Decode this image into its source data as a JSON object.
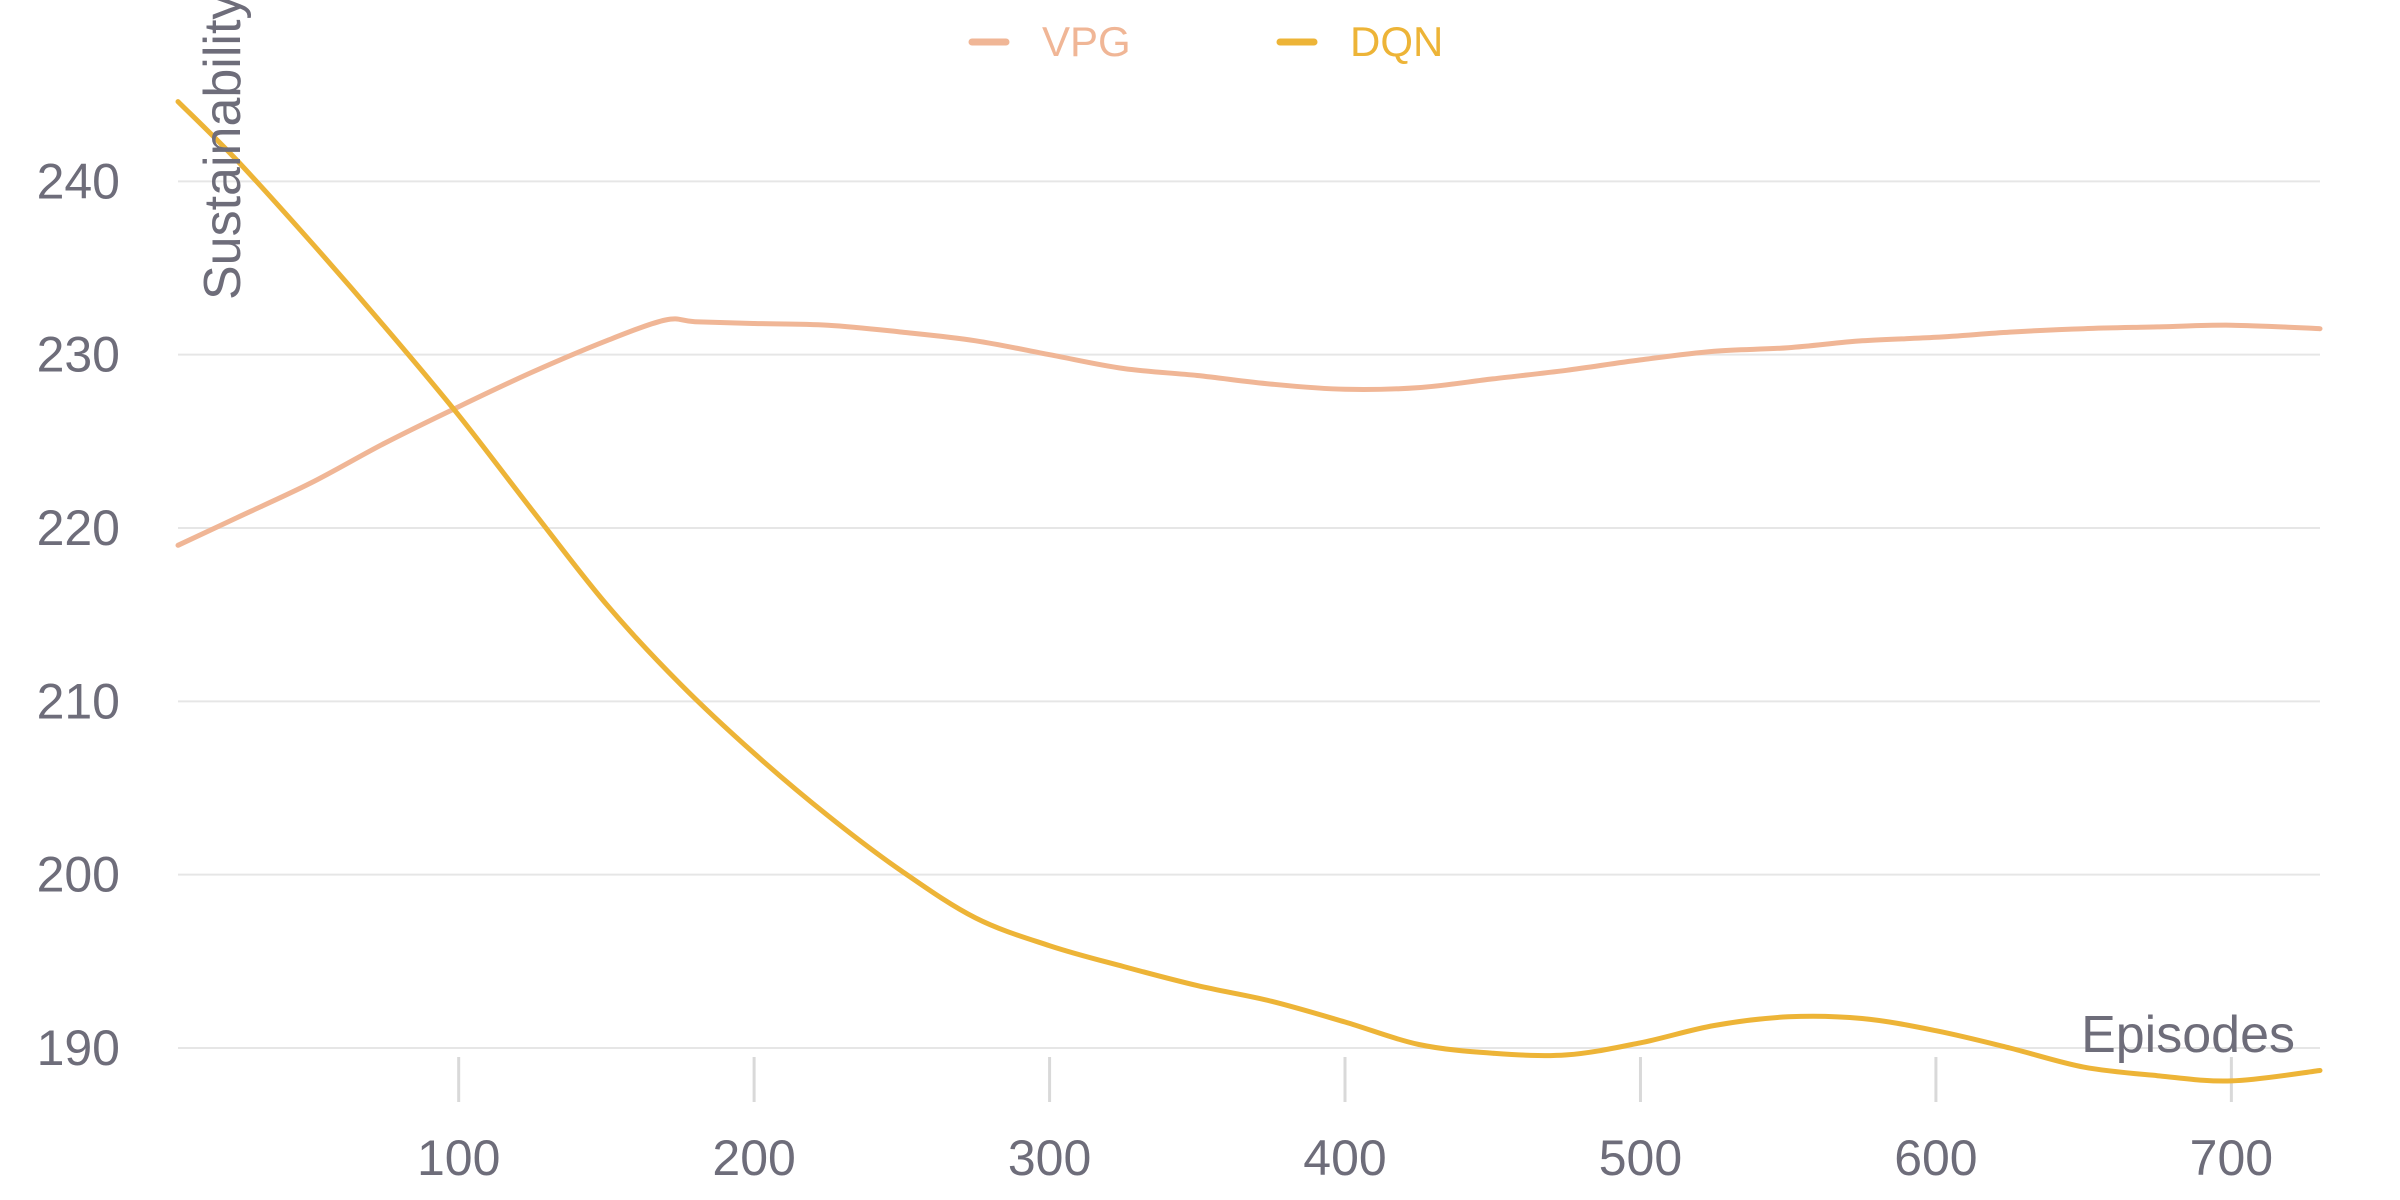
{
  "chart_data": {
    "type": "line",
    "title": "",
    "xlabel": "Episodes",
    "ylabel": "Sustainability",
    "xlim": [
      5,
      730
    ],
    "ylim": [
      187,
      247
    ],
    "x_ticks": [
      100,
      200,
      300,
      400,
      500,
      600,
      700
    ],
    "y_ticks": [
      190,
      200,
      210,
      220,
      230,
      240
    ],
    "grid": "horizontal",
    "legend_position": "top-center",
    "series": [
      {
        "name": "VPG",
        "color": "#f0b696",
        "x": [
          5,
          25,
          50,
          75,
          100,
          125,
          150,
          170,
          180,
          200,
          225,
          250,
          275,
          300,
          325,
          350,
          375,
          400,
          425,
          450,
          475,
          500,
          525,
          550,
          575,
          600,
          625,
          650,
          675,
          700,
          730
        ],
        "y": [
          219,
          220.6,
          222.6,
          224.9,
          227.0,
          229.0,
          230.8,
          232.0,
          231.9,
          231.8,
          231.7,
          231.3,
          230.8,
          230.0,
          229.2,
          228.8,
          228.3,
          228.0,
          228.1,
          228.6,
          229.1,
          229.7,
          230.2,
          230.4,
          230.8,
          231.0,
          231.3,
          231.5,
          231.6,
          231.7,
          231.5
        ]
      },
      {
        "name": "DQN",
        "color": "#edb437",
        "x": [
          5,
          25,
          50,
          75,
          100,
          125,
          150,
          175,
          200,
          225,
          250,
          275,
          300,
          325,
          350,
          375,
          400,
          425,
          450,
          475,
          500,
          525,
          550,
          575,
          600,
          625,
          650,
          675,
          700,
          730
        ],
        "y": [
          244.6,
          241.2,
          236.5,
          231.6,
          226.5,
          221.0,
          215.6,
          211.0,
          207.0,
          203.4,
          200.2,
          197.5,
          195.9,
          194.7,
          193.6,
          192.7,
          191.5,
          190.2,
          189.7,
          189.6,
          190.3,
          191.3,
          191.8,
          191.7,
          191.0,
          190.0,
          188.9,
          188.4,
          188.1,
          188.7
        ]
      }
    ]
  }
}
